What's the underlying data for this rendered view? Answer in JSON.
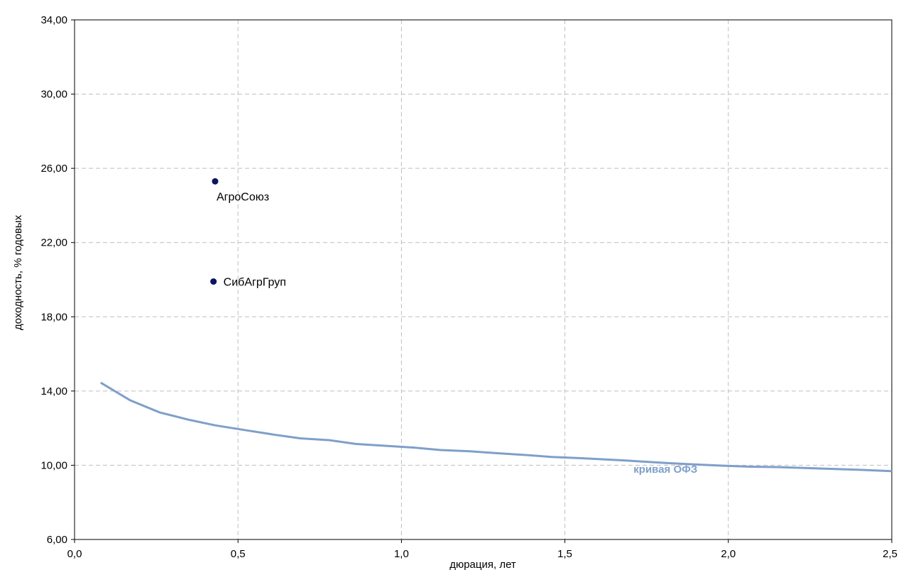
{
  "chart_data": {
    "type": "scatter",
    "xlabel": "дюрация, лет",
    "ylabel": "доходность, % годовых",
    "xlim": [
      0,
      2.5
    ],
    "ylim": [
      6,
      34
    ],
    "x_ticks": [
      "0,0",
      "0,5",
      "1,0",
      "1,5",
      "2,0",
      "2,5"
    ],
    "x_tick_values": [
      0,
      0.5,
      1.0,
      1.5,
      2.0,
      2.5
    ],
    "y_ticks": [
      "6,00",
      "10,00",
      "14,00",
      "18,00",
      "22,00",
      "26,00",
      "30,00",
      "34,00"
    ],
    "y_tick_values": [
      6,
      10,
      14,
      18,
      22,
      26,
      30,
      34
    ],
    "grid": true,
    "colors": {
      "curve": "#7f9fc9",
      "points": "#0b1560",
      "grid": "#bfbfbf"
    },
    "points": [
      {
        "name": "АгроСоюз",
        "x": 0.43,
        "y": 25.3
      },
      {
        "name": "СибАгрГруп",
        "x": 0.425,
        "y": 19.9
      }
    ],
    "curve": {
      "name": "кривая ОФЗ",
      "x": [
        0.08,
        0.17,
        0.26,
        0.35,
        0.43,
        0.52,
        0.61,
        0.69,
        0.78,
        0.86,
        0.95,
        1.04,
        1.12,
        1.21,
        1.29,
        1.38,
        1.46,
        1.55,
        1.64,
        1.72,
        1.81,
        1.89,
        1.98,
        2.07,
        2.15,
        2.24,
        2.33,
        2.41,
        2.5
      ],
      "y": [
        14.45,
        13.5,
        12.85,
        12.45,
        12.15,
        11.9,
        11.65,
        11.45,
        11.35,
        11.15,
        11.05,
        10.95,
        10.82,
        10.75,
        10.65,
        10.55,
        10.45,
        10.38,
        10.3,
        10.22,
        10.12,
        10.05,
        9.98,
        9.92,
        9.9,
        9.85,
        9.8,
        9.75,
        9.68
      ]
    }
  }
}
